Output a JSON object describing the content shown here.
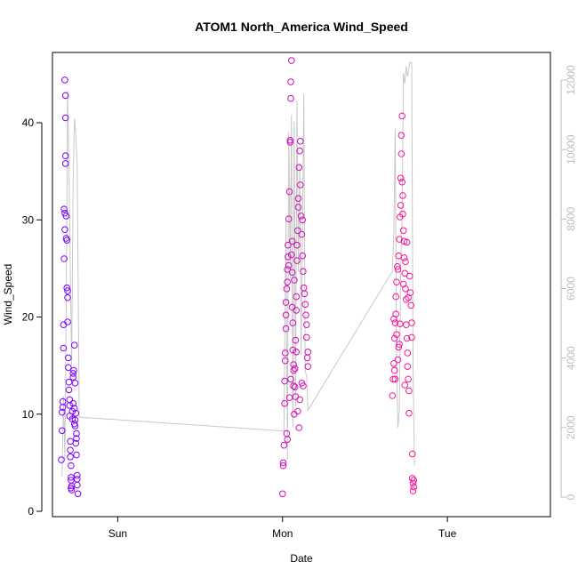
{
  "chart_data": {
    "type": "scatter",
    "title": "ATOM1 North_America Wind_Speed",
    "xlabel": "Date",
    "ylabel": "Wind_Speed",
    "x_ticks": [
      {
        "x": 0.0,
        "label": "Sun"
      },
      {
        "x": 24.0,
        "label": "Mon"
      },
      {
        "x": 48.0,
        "label": "Tue"
      }
    ],
    "x_range": [
      -9.5,
      63.0
    ],
    "ylim": [
      0,
      46.5
    ],
    "y_ticks": [
      0,
      10,
      20,
      30,
      40
    ],
    "y2lim": [
      0,
      12500
    ],
    "y2_ticks": [
      0,
      2000,
      4000,
      6000,
      8000,
      10000,
      12000
    ],
    "grid": false,
    "point_color_start": "#7a00ff",
    "point_color_end": "#ff1493",
    "line_color": "#c8c8c8",
    "secondary_line": [
      [
        -8.1,
        600
      ],
      [
        -7.9,
        2900
      ],
      [
        -7.7,
        1100
      ],
      [
        -7.5,
        5200
      ],
      [
        -7.3,
        11700
      ],
      [
        -7.1,
        9500
      ],
      [
        -6.9,
        6500
      ],
      [
        -6.7,
        3800
      ],
      [
        -6.5,
        9000
      ],
      [
        -6.3,
        10900
      ],
      [
        -6.1,
        10400
      ],
      [
        -5.9,
        9600
      ],
      [
        -5.6,
        2300
      ],
      [
        24.2,
        1900
      ],
      [
        24.5,
        8000
      ],
      [
        24.7,
        1100
      ],
      [
        24.9,
        10500
      ],
      [
        25.1,
        6300
      ],
      [
        25.3,
        11000
      ],
      [
        25.5,
        2000
      ],
      [
        25.7,
        10800
      ],
      [
        25.9,
        2600
      ],
      [
        26.1,
        11400
      ],
      [
        26.3,
        6500
      ],
      [
        26.5,
        9600
      ],
      [
        26.7,
        4100
      ],
      [
        26.9,
        7600
      ],
      [
        27.1,
        11600
      ],
      [
        27.3,
        3600
      ],
      [
        27.5,
        3500
      ],
      [
        27.7,
        2500
      ],
      [
        40.0,
        6500
      ],
      [
        40.2,
        7600
      ],
      [
        40.4,
        10600
      ],
      [
        40.6,
        3700
      ],
      [
        40.8,
        2000
      ],
      [
        41.0,
        2500
      ],
      [
        41.2,
        6600
      ],
      [
        41.4,
        8100
      ],
      [
        41.6,
        12200
      ],
      [
        41.8,
        11900
      ],
      [
        42.0,
        12400
      ],
      [
        42.2,
        12100
      ],
      [
        42.5,
        12500
      ],
      [
        42.8,
        12500
      ],
      [
        43.0,
        3800
      ],
      [
        43.2,
        900
      ]
    ],
    "series": [
      {
        "values": [
          [
            -8.2,
            5.3
          ],
          [
            -8.1,
            8.3
          ],
          [
            -8.1,
            10.2
          ],
          [
            -8.0,
            10.7
          ],
          [
            -8.0,
            11.3
          ],
          [
            -7.9,
            16.8
          ],
          [
            -7.9,
            19.2
          ],
          [
            -7.8,
            26.0
          ],
          [
            -7.8,
            31.1
          ],
          [
            -7.7,
            30.7
          ],
          [
            -7.7,
            29.0
          ],
          [
            -7.6,
            35.8
          ],
          [
            -7.6,
            36.6
          ],
          [
            -7.6,
            40.5
          ],
          [
            -7.6,
            42.8
          ],
          [
            -7.7,
            44.4
          ],
          [
            -7.5,
            28.1
          ],
          [
            -7.5,
            30.4
          ],
          [
            -7.4,
            27.9
          ],
          [
            -7.4,
            23.0
          ],
          [
            -7.3,
            22.7
          ],
          [
            -7.3,
            22.0
          ],
          [
            -7.3,
            19.5
          ],
          [
            -7.2,
            15.8
          ],
          [
            -7.2,
            14.8
          ],
          [
            -7.1,
            13.3
          ],
          [
            -7.1,
            12.5
          ],
          [
            -7.0,
            11.5
          ],
          [
            -7.0,
            10.9
          ],
          [
            -7.0,
            9.8
          ],
          [
            -6.9,
            7.2
          ],
          [
            -6.9,
            6.3
          ],
          [
            -6.9,
            5.6
          ],
          [
            -6.8,
            4.7
          ],
          [
            -6.8,
            3.5
          ],
          [
            -6.8,
            3.2
          ],
          [
            -6.8,
            2.4
          ],
          [
            -6.7,
            2.2
          ],
          [
            -6.7,
            2.6
          ],
          [
            -6.6,
            9.5
          ],
          [
            -6.6,
            10.3
          ],
          [
            -6.5,
            11.1
          ],
          [
            -6.5,
            13.8
          ],
          [
            -6.5,
            14.2
          ],
          [
            -6.4,
            14.5
          ],
          [
            -6.3,
            17.1
          ],
          [
            -6.3,
            10.6
          ],
          [
            -6.3,
            9.0
          ],
          [
            -6.2,
            8.8
          ],
          [
            -6.2,
            9.4
          ],
          [
            -6.1,
            10.1
          ],
          [
            -6.1,
            7.0
          ],
          [
            -6.0,
            5.8
          ],
          [
            -6.0,
            7.5
          ],
          [
            -6.0,
            8.0
          ],
          [
            -5.9,
            3.3
          ],
          [
            -5.9,
            3.7
          ],
          [
            -5.9,
            2.7
          ],
          [
            -5.8,
            1.8
          ],
          [
            -6.2,
            13.2
          ]
        ]
      },
      {
        "values": [
          [
            24.0,
            1.8
          ],
          [
            24.1,
            4.7
          ],
          [
            24.1,
            5.0
          ],
          [
            24.2,
            6.8
          ],
          [
            24.3,
            11.1
          ],
          [
            24.3,
            13.4
          ],
          [
            24.4,
            15.5
          ],
          [
            24.4,
            16.3
          ],
          [
            24.5,
            18.8
          ],
          [
            24.5,
            20.2
          ],
          [
            24.5,
            21.5
          ],
          [
            24.6,
            22.9
          ],
          [
            24.7,
            23.6
          ],
          [
            24.7,
            24.9
          ],
          [
            24.8,
            26.2
          ],
          [
            24.8,
            27.4
          ],
          [
            24.9,
            30.1
          ],
          [
            25.0,
            32.9
          ],
          [
            25.1,
            38.2
          ],
          [
            25.1,
            38.0
          ],
          [
            25.2,
            42.5
          ],
          [
            25.2,
            44.2
          ],
          [
            25.3,
            46.4
          ],
          [
            25.3,
            26.4
          ],
          [
            25.4,
            24.6
          ],
          [
            25.4,
            21.0
          ],
          [
            25.5,
            19.4
          ],
          [
            25.5,
            16.6
          ],
          [
            25.6,
            14.5
          ],
          [
            25.6,
            12.9
          ],
          [
            25.7,
            10.0
          ],
          [
            25.8,
            12.8
          ],
          [
            25.8,
            14.7
          ],
          [
            25.9,
            17.6
          ],
          [
            26.0,
            16.4
          ],
          [
            26.0,
            20.7
          ],
          [
            26.1,
            25.8
          ],
          [
            26.1,
            27.4
          ],
          [
            26.2,
            28.9
          ],
          [
            26.3,
            31.3
          ],
          [
            26.3,
            32.2
          ],
          [
            26.4,
            35.4
          ],
          [
            26.5,
            37.1
          ],
          [
            26.6,
            38.1
          ],
          [
            26.7,
            30.4
          ],
          [
            26.8,
            28.5
          ],
          [
            26.9,
            26.3
          ],
          [
            27.0,
            24.7
          ],
          [
            27.1,
            23.0
          ],
          [
            27.2,
            22.4
          ],
          [
            27.3,
            21.3
          ],
          [
            27.4,
            20.2
          ],
          [
            27.5,
            19.2
          ],
          [
            27.5,
            17.9
          ],
          [
            27.6,
            15.8
          ],
          [
            27.7,
            14.9
          ],
          [
            27.7,
            16.4
          ],
          [
            24.6,
            8.0
          ],
          [
            24.7,
            7.4
          ],
          [
            25.0,
            11.7
          ],
          [
            25.2,
            13.6
          ],
          [
            25.6,
            15.1
          ],
          [
            25.9,
            11.8
          ],
          [
            26.2,
            10.3
          ],
          [
            26.4,
            8.6
          ],
          [
            26.5,
            11.5
          ],
          [
            26.8,
            13.2
          ],
          [
            27.0,
            12.9
          ],
          [
            24.9,
            25.3
          ],
          [
            25.7,
            23.8
          ],
          [
            26.6,
            33.6
          ],
          [
            26.9,
            30.0
          ],
          [
            25.4,
            27.8
          ],
          [
            26.0,
            22.1
          ]
        ]
      },
      {
        "values": [
          [
            40.0,
            11.9
          ],
          [
            40.1,
            13.6
          ],
          [
            40.2,
            15.2
          ],
          [
            40.3,
            14.5
          ],
          [
            40.3,
            17.8
          ],
          [
            40.4,
            19.4
          ],
          [
            40.5,
            20.3
          ],
          [
            40.5,
            22.1
          ],
          [
            40.6,
            23.6
          ],
          [
            40.7,
            25.2
          ],
          [
            40.8,
            24.9
          ],
          [
            40.9,
            26.3
          ],
          [
            41.0,
            28.0
          ],
          [
            41.1,
            30.3
          ],
          [
            41.2,
            31.5
          ],
          [
            41.2,
            34.3
          ],
          [
            41.3,
            36.8
          ],
          [
            41.3,
            38.7
          ],
          [
            41.4,
            40.7
          ],
          [
            41.4,
            33.9
          ],
          [
            41.5,
            32.5
          ],
          [
            41.5,
            30.6
          ],
          [
            41.6,
            28.9
          ],
          [
            41.7,
            27.8
          ],
          [
            41.7,
            26.1
          ],
          [
            41.8,
            24.5
          ],
          [
            41.9,
            22.9
          ],
          [
            42.0,
            21.8
          ],
          [
            42.0,
            19.2
          ],
          [
            42.1,
            17.8
          ],
          [
            42.2,
            16.3
          ],
          [
            42.2,
            14.9
          ],
          [
            42.3,
            13.6
          ],
          [
            42.4,
            12.4
          ],
          [
            42.4,
            10.1
          ],
          [
            42.5,
            24.2
          ],
          [
            42.6,
            22.5
          ],
          [
            42.7,
            21.2
          ],
          [
            42.8,
            19.4
          ],
          [
            42.8,
            17.9
          ],
          [
            42.9,
            5.9
          ],
          [
            42.9,
            3.4
          ],
          [
            43.0,
            2.9
          ],
          [
            43.0,
            2.1
          ],
          [
            43.1,
            2.5
          ],
          [
            43.1,
            3.2
          ],
          [
            40.2,
            19.8
          ],
          [
            40.6,
            18.2
          ],
          [
            40.9,
            16.9
          ],
          [
            41.1,
            19.3
          ],
          [
            41.6,
            23.4
          ],
          [
            41.9,
            25.7
          ],
          [
            42.1,
            27.7
          ],
          [
            42.3,
            22.0
          ],
          [
            40.4,
            13.6
          ],
          [
            40.8,
            15.6
          ],
          [
            41.0,
            17.2
          ],
          [
            41.8,
            13.0
          ]
        ]
      }
    ]
  }
}
